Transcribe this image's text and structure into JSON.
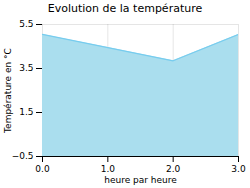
{
  "chart_data": {
    "type": "area",
    "title": "Evolution de la température",
    "x_label": "heure par heure",
    "y_label": "Température en °C",
    "x": [
      0,
      1,
      2,
      3
    ],
    "values": [
      5.05,
      4.45,
      3.85,
      5.05
    ],
    "xlim": [
      0,
      3
    ],
    "ylim": [
      -0.5,
      5.5
    ],
    "xticks": [
      0,
      1,
      2,
      3
    ],
    "yticks": [
      -0.5,
      1.5,
      3.5,
      5.5
    ],
    "colors": [
      "#aadeee",
      "#77ccee"
    ],
    "grid": true
  }
}
